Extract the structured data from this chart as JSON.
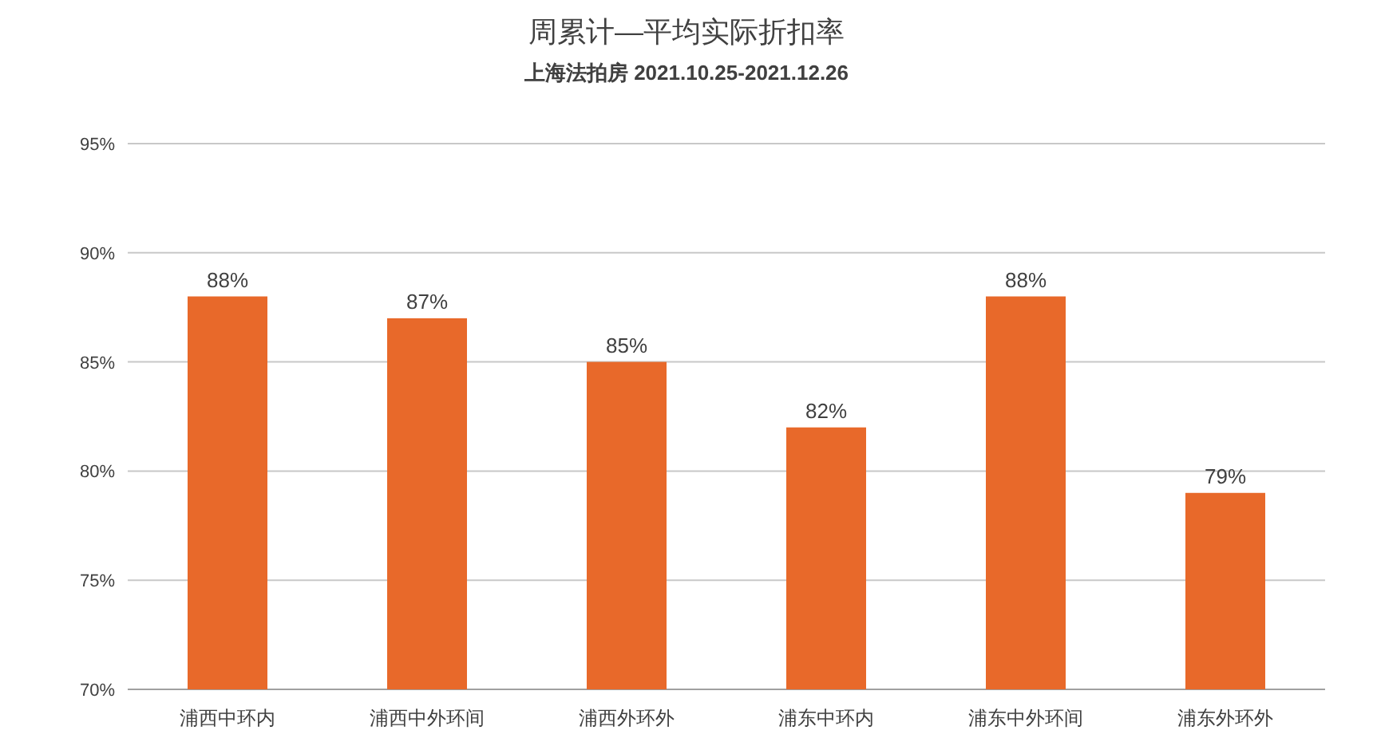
{
  "chart_data": {
    "type": "bar",
    "title": "周累计—平均实际折扣率",
    "subtitle": "上海法拍房  2021.10.25-2021.12.26",
    "categories": [
      "浦西中环内",
      "浦西中外环间",
      "浦西外环外",
      "浦东中环内",
      "浦东中外环间",
      "浦东外环外"
    ],
    "values": [
      88,
      87,
      85,
      82,
      88,
      79
    ],
    "value_labels": [
      "88%",
      "87%",
      "85%",
      "82%",
      "88%",
      "79%"
    ],
    "color": "#e8692a",
    "ylim": [
      70,
      95
    ],
    "yticks": [
      {
        "value": 70,
        "label": "70%"
      },
      {
        "value": 75,
        "label": "75%"
      },
      {
        "value": 80,
        "label": "80%"
      },
      {
        "value": 85,
        "label": "85%"
      },
      {
        "value": 90,
        "label": "90%"
      },
      {
        "value": 95,
        "label": "95%"
      }
    ],
    "grid": "y"
  }
}
